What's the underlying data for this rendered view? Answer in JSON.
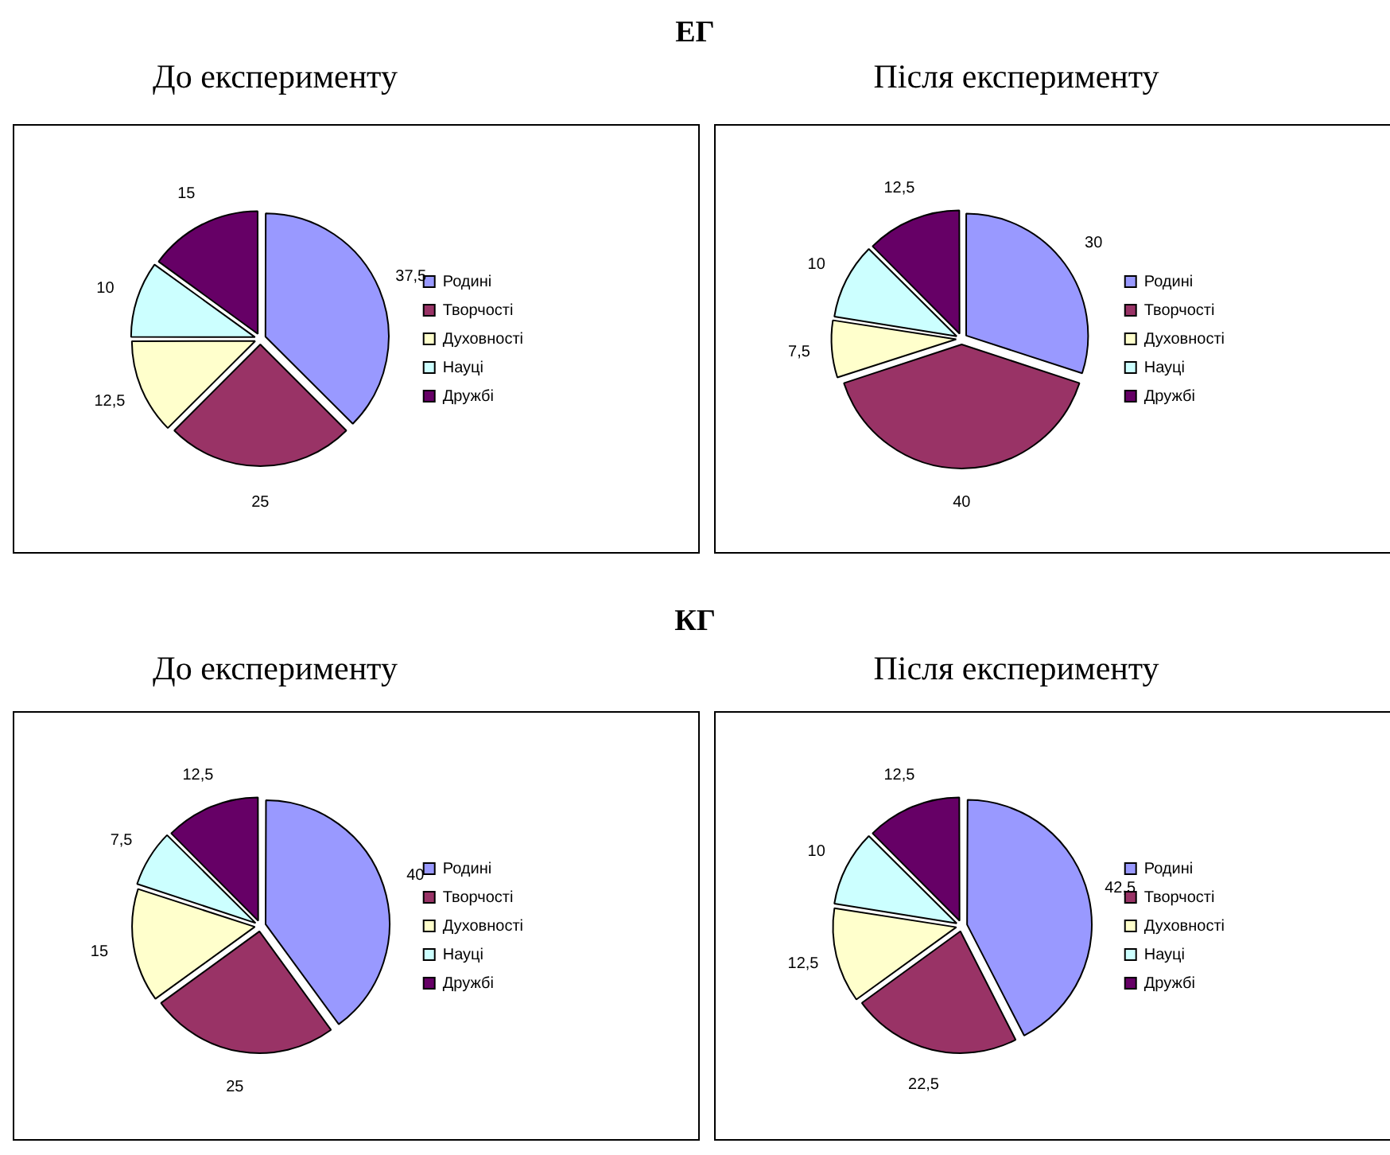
{
  "chart_data": [
    {
      "type": "pie",
      "title": "До експерименту",
      "annotations": [
        "ЕГ"
      ],
      "categories": [
        "Родині",
        "Творчості",
        "Духовності",
        "Науці",
        "Дружбі"
      ],
      "values": [
        37.5,
        25,
        12.5,
        10,
        15
      ],
      "value_labels": [
        "37,5",
        "25",
        "12,5",
        "10",
        "15"
      ],
      "colors": [
        "#9999ff",
        "#993366",
        "#ffffcc",
        "#ccffff",
        "#660066"
      ],
      "legend": "right"
    },
    {
      "type": "pie",
      "title": "Після експерименту",
      "categories": [
        "Родині",
        "Творчості",
        "Духовності",
        "Науці",
        "Дружбі"
      ],
      "values": [
        30,
        40,
        7.5,
        10,
        12.5
      ],
      "value_labels": [
        "30",
        "40",
        "7,5",
        "10",
        "12,5"
      ],
      "colors": [
        "#9999ff",
        "#993366",
        "#ffffcc",
        "#ccffff",
        "#660066"
      ],
      "legend": "right"
    },
    {
      "type": "pie",
      "title": "До експерименту",
      "annotations": [
        "КГ"
      ],
      "categories": [
        "Родині",
        "Творчості",
        "Духовності",
        "Науці",
        "Дружбі"
      ],
      "values": [
        40,
        25,
        15,
        7.5,
        12.5
      ],
      "value_labels": [
        "40",
        "25",
        "15",
        "7,5",
        "12,5"
      ],
      "colors": [
        "#9999ff",
        "#993366",
        "#ffffcc",
        "#ccffff",
        "#660066"
      ],
      "legend": "right"
    },
    {
      "type": "pie",
      "title": "Після експерименту",
      "categories": [
        "Родині",
        "Творчості",
        "Духовності",
        "Науці",
        "Дружбі"
      ],
      "values": [
        42.5,
        22.5,
        12.5,
        10,
        12.5
      ],
      "value_labels": [
        "42,5",
        "22,5",
        "12,5",
        "10",
        "12,5"
      ],
      "colors": [
        "#9999ff",
        "#993366",
        "#ffffcc",
        "#ccffff",
        "#660066"
      ],
      "legend": "right"
    }
  ]
}
